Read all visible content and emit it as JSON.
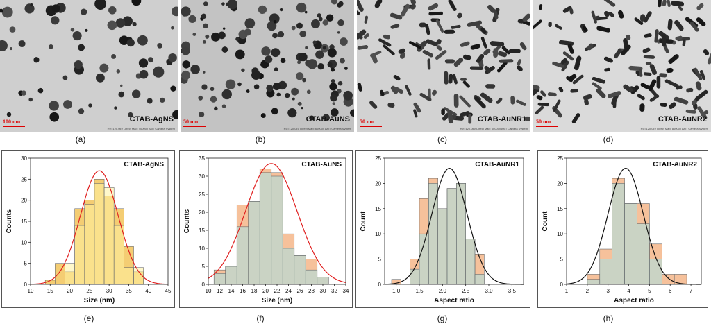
{
  "tem_images": [
    {
      "letter": "(a)",
      "sample": "CTAB-AgNS",
      "scale": "100 nm",
      "meta": "HV=120.0kV Direct Mag: 40000x AMT Camera System"
    },
    {
      "letter": "(b)",
      "sample": "CTAB-AuNS",
      "scale": "50 nm",
      "meta": "HV=120.0kV Direct Mag: 60000x AMT Camera System"
    },
    {
      "letter": "(c)",
      "sample": "CTAB-AuNR1",
      "scale": "50 nm",
      "meta": "HV=120.0kV Direct Mag: 60000x AMT Camera System"
    },
    {
      "letter": "(d)",
      "sample": "CTAB-AuNR2",
      "scale": "50 nm",
      "meta": "HV=120.0kV Direct Mag: 80000x AMT Camera System"
    }
  ],
  "chart_data": [
    {
      "type": "bar",
      "letter": "(e)",
      "title": "CTAB-AgNS",
      "xlabel": "Size (nm)",
      "ylabel": "Counts",
      "xlim": [
        10,
        45
      ],
      "ylim": [
        0,
        30
      ],
      "xticks": [
        10,
        15,
        20,
        25,
        30,
        35,
        40,
        45
      ],
      "yticks": [
        0,
        5,
        10,
        15,
        20,
        25,
        30
      ],
      "bin_width": 2.5,
      "bins": [
        15,
        17.5,
        20,
        22.5,
        25,
        27.5,
        30,
        32.5,
        35,
        37.5
      ],
      "series": [
        {
          "name": "histogram",
          "values": [
            1,
            5,
            3,
            18,
            20,
            25,
            21,
            18,
            9,
            3
          ]
        },
        {
          "name": "bins-2",
          "values": [
            0,
            0,
            5,
            14,
            19,
            24,
            23,
            14,
            4,
            4
          ]
        }
      ],
      "fit": {
        "kind": "gaussian",
        "center": 27.5,
        "sigma": 4.8,
        "peak": 27
      },
      "colors": {
        "bar1": "#f2c45a",
        "bar2": "#fff3a0",
        "fit": "#e02020"
      }
    },
    {
      "type": "bar",
      "letter": "(f)",
      "title": "CTAB-AuNS",
      "xlabel": "Size (nm)",
      "ylabel": "Counts",
      "xlim": [
        10,
        34
      ],
      "ylim": [
        0,
        35
      ],
      "xticks": [
        10,
        12,
        14,
        16,
        18,
        20,
        22,
        24,
        26,
        28,
        30,
        32,
        34
      ],
      "yticks": [
        0,
        5,
        10,
        15,
        20,
        25,
        30,
        35
      ],
      "bin_width": 2,
      "bins": [
        12,
        14,
        16,
        18,
        20,
        22,
        24,
        26,
        28,
        30
      ],
      "series": [
        {
          "name": "histogram",
          "values": [
            4,
            5,
            22,
            23,
            32,
            31,
            14,
            8,
            7,
            2
          ]
        },
        {
          "name": "bins-2",
          "values": [
            3,
            5,
            16,
            23,
            31,
            30,
            10,
            8,
            4,
            2
          ]
        }
      ],
      "fit": {
        "kind": "gaussian",
        "center": 21,
        "sigma": 4.5,
        "peak": 33.5
      },
      "colors": {
        "bar1": "#f4b68a",
        "bar2": "#a6e2e6",
        "fit": "#e02020"
      }
    },
    {
      "type": "bar",
      "letter": "(g)",
      "title": "CTAB-AuNR1",
      "xlabel": "Aspect ratio",
      "ylabel": "Count",
      "xlim": [
        0.75,
        3.75
      ],
      "ylim": [
        0,
        25
      ],
      "xticks": [
        1.0,
        1.5,
        2.0,
        2.5,
        3.0,
        3.5
      ],
      "yticks": [
        0,
        5,
        10,
        15,
        20,
        25
      ],
      "bin_width": 0.2,
      "bins": [
        1.0,
        1.2,
        1.4,
        1.6,
        1.8,
        2.0,
        2.2,
        2.4,
        2.6,
        2.8
      ],
      "series": [
        {
          "name": "histogram",
          "values": [
            1,
            0,
            5,
            17,
            21,
            15,
            19,
            20,
            9,
            6
          ]
        },
        {
          "name": "bins-2",
          "values": [
            0,
            0,
            3,
            10,
            20,
            15,
            19,
            20,
            9,
            2
          ]
        }
      ],
      "fit": {
        "kind": "gaussian",
        "center": 2.15,
        "sigma": 0.38,
        "peak": 23
      },
      "colors": {
        "bar1": "#f4b68a",
        "bar2": "#a6e2e6",
        "fit": "#111111"
      }
    },
    {
      "type": "bar",
      "letter": "(h)",
      "title": "CTAB-AuNR2",
      "xlabel": "Aspect ratio",
      "ylabel": "Count",
      "xlim": [
        1,
        7.5
      ],
      "ylim": [
        0,
        25
      ],
      "xticks": [
        1,
        2,
        3,
        4,
        5,
        6,
        7
      ],
      "yticks": [
        0,
        5,
        10,
        15,
        20,
        25
      ],
      "bin_width": 0.6,
      "bins": [
        2.3,
        2.9,
        3.5,
        4.1,
        4.7,
        5.3,
        5.9,
        6.5
      ],
      "series": [
        {
          "name": "histogram",
          "values": [
            2,
            7,
            21,
            16,
            16,
            8,
            2,
            2
          ]
        },
        {
          "name": "bins-2",
          "values": [
            1,
            5,
            20,
            16,
            12,
            5,
            0,
            0
          ]
        }
      ],
      "fit": {
        "kind": "gaussian",
        "center": 3.85,
        "sigma": 0.85,
        "peak": 23
      },
      "colors": {
        "bar1": "#f4b68a",
        "bar2": "#a6e2e6",
        "fit": "#111111"
      }
    }
  ]
}
